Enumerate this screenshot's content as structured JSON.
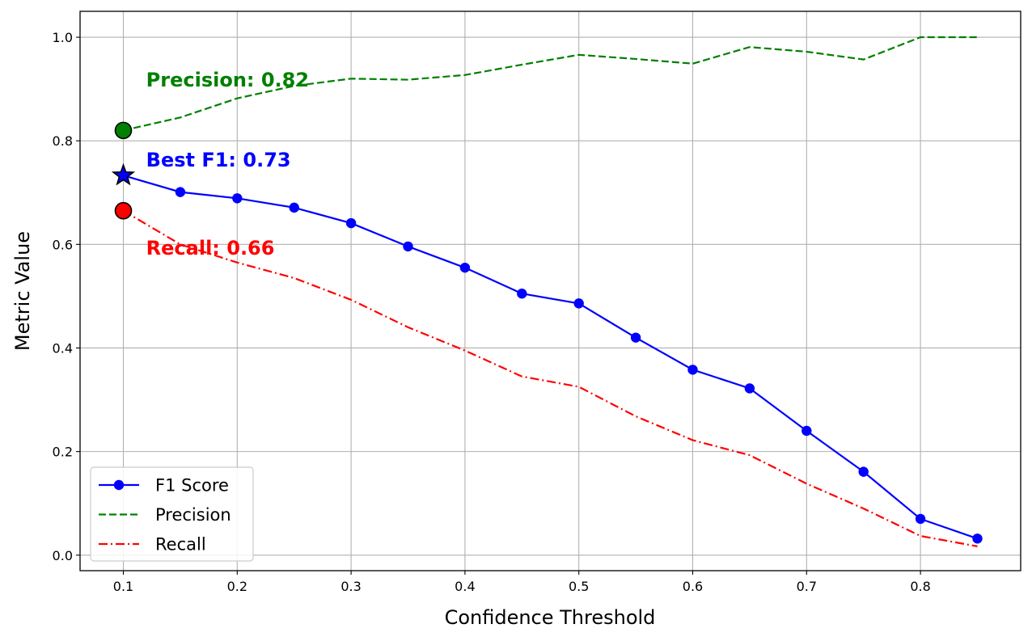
{
  "chart_data": {
    "type": "line",
    "xlabel": "Confidence Threshold",
    "ylabel": "Metric Value",
    "xlim": [
      0.062,
      0.888
    ],
    "ylim": [
      -0.03,
      1.05
    ],
    "xticks": [
      "0.1",
      "0.2",
      "0.3",
      "0.4",
      "0.5",
      "0.6",
      "0.7",
      "0.8"
    ],
    "yticks": [
      "0.0",
      "0.2",
      "0.4",
      "0.6",
      "0.8",
      "1.0"
    ],
    "grid": true,
    "legend_position": "lower-left",
    "x": [
      0.1,
      0.15,
      0.2,
      0.25,
      0.3,
      0.35,
      0.4,
      0.45,
      0.5,
      0.55,
      0.6,
      0.65,
      0.7,
      0.75,
      0.8,
      0.85
    ],
    "series": [
      {
        "name": "F1 Score",
        "color": "#0000ff",
        "style": "solid-markers",
        "values": [
          0.733,
          0.701,
          0.689,
          0.671,
          0.641,
          0.596,
          0.555,
          0.505,
          0.486,
          0.42,
          0.358,
          0.322,
          0.24,
          0.161,
          0.07,
          0.032
        ]
      },
      {
        "name": "Precision",
        "color": "#008000",
        "style": "dashed",
        "values": [
          0.82,
          0.845,
          0.882,
          0.906,
          0.92,
          0.918,
          0.927,
          0.947,
          0.966,
          0.958,
          0.949,
          0.981,
          0.972,
          0.957,
          1.0,
          1.0
        ]
      },
      {
        "name": "Recall",
        "color": "#ff0000",
        "style": "dashdot",
        "values": [
          0.665,
          0.6,
          0.565,
          0.535,
          0.493,
          0.44,
          0.395,
          0.345,
          0.325,
          0.268,
          0.222,
          0.193,
          0.138,
          0.09,
          0.037,
          0.017
        ]
      }
    ],
    "highlights": [
      {
        "series": "Precision",
        "x": 0.1,
        "y": 0.82,
        "marker": "circle",
        "color": "#008000"
      },
      {
        "series": "F1 Score",
        "x": 0.1,
        "y": 0.733,
        "marker": "star",
        "color": "#0000ff"
      },
      {
        "series": "Recall",
        "x": 0.1,
        "y": 0.665,
        "marker": "circle",
        "color": "#ff0000"
      }
    ],
    "annotations": [
      {
        "text": "Precision: 0.82",
        "x": 0.12,
        "y": 0.905,
        "color": "#008000"
      },
      {
        "text": "Best F1: 0.73",
        "x": 0.12,
        "y": 0.75,
        "color": "#0000ff"
      },
      {
        "text": "Recall: 0.66",
        "x": 0.12,
        "y": 0.58,
        "color": "#ff0000"
      }
    ]
  }
}
